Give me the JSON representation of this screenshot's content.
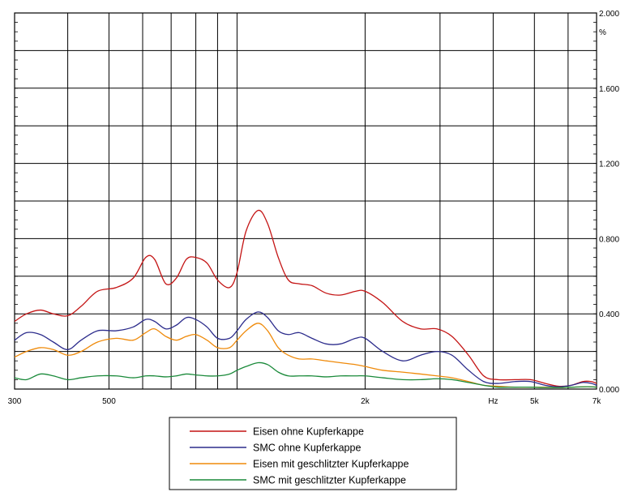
{
  "chart_data": {
    "type": "line",
    "x_scale": "log",
    "x_unit": "Hz",
    "y_unit": "%",
    "xlim": [
      300,
      7000
    ],
    "ylim": [
      0,
      2.0
    ],
    "x_tick_labels": [
      {
        "value": 300,
        "label": "300"
      },
      {
        "value": 500,
        "label": "500"
      },
      {
        "value": 2000,
        "label": "2k"
      },
      {
        "value": 4000,
        "label": "Hz"
      },
      {
        "value": 5000,
        "label": "5k"
      },
      {
        "value": 7000,
        "label": "7k"
      }
    ],
    "y_tick_labels": [
      {
        "value": 0.0,
        "label": "0.000"
      },
      {
        "value": 0.4,
        "label": "0.400"
      },
      {
        "value": 0.8,
        "label": "0.800"
      },
      {
        "value": 1.2,
        "label": "1.200"
      },
      {
        "value": 1.6,
        "label": "1.600"
      },
      {
        "value": 1.9,
        "label": "%"
      },
      {
        "value": 2.0,
        "label": "2.000"
      }
    ],
    "x_grid": [
      300,
      400,
      500,
      600,
      700,
      800,
      900,
      1000,
      2000,
      3000,
      4000,
      5000,
      6000,
      7000
    ],
    "y_grid": [
      0,
      0.2,
      0.4,
      0.6,
      0.8,
      1.0,
      1.2,
      1.4,
      1.6,
      1.8,
      2.0
    ],
    "grid": true,
    "legend_position": "bottom-center",
    "series": [
      {
        "name": "Eisen ohne Kupferkappe",
        "color": "#c41414",
        "points": [
          [
            300,
            0.36
          ],
          [
            320,
            0.4
          ],
          [
            345,
            0.42
          ],
          [
            370,
            0.4
          ],
          [
            400,
            0.39
          ],
          [
            430,
            0.44
          ],
          [
            470,
            0.52
          ],
          [
            520,
            0.54
          ],
          [
            570,
            0.59
          ],
          [
            610,
            0.7
          ],
          [
            640,
            0.69
          ],
          [
            680,
            0.56
          ],
          [
            720,
            0.59
          ],
          [
            760,
            0.69
          ],
          [
            800,
            0.7
          ],
          [
            850,
            0.67
          ],
          [
            900,
            0.58
          ],
          [
            960,
            0.54
          ],
          [
            1000,
            0.62
          ],
          [
            1050,
            0.84
          ],
          [
            1120,
            0.95
          ],
          [
            1180,
            0.88
          ],
          [
            1250,
            0.7
          ],
          [
            1320,
            0.58
          ],
          [
            1400,
            0.56
          ],
          [
            1500,
            0.55
          ],
          [
            1620,
            0.51
          ],
          [
            1750,
            0.5
          ],
          [
            1900,
            0.52
          ],
          [
            2000,
            0.52
          ],
          [
            2200,
            0.46
          ],
          [
            2450,
            0.36
          ],
          [
            2700,
            0.32
          ],
          [
            2950,
            0.32
          ],
          [
            3200,
            0.28
          ],
          [
            3500,
            0.18
          ],
          [
            3800,
            0.07
          ],
          [
            4100,
            0.05
          ],
          [
            4500,
            0.05
          ],
          [
            4900,
            0.05
          ],
          [
            5300,
            0.03
          ],
          [
            5700,
            0.015
          ],
          [
            6100,
            0.02
          ],
          [
            6500,
            0.04
          ],
          [
            6800,
            0.04
          ],
          [
            7000,
            0.03
          ]
        ]
      },
      {
        "name": "SMC ohne Kupferkappe",
        "color": "#2c2c8c",
        "points": [
          [
            300,
            0.26
          ],
          [
            320,
            0.3
          ],
          [
            345,
            0.29
          ],
          [
            370,
            0.25
          ],
          [
            400,
            0.21
          ],
          [
            430,
            0.26
          ],
          [
            470,
            0.31
          ],
          [
            520,
            0.31
          ],
          [
            570,
            0.33
          ],
          [
            610,
            0.37
          ],
          [
            640,
            0.36
          ],
          [
            680,
            0.32
          ],
          [
            720,
            0.34
          ],
          [
            760,
            0.38
          ],
          [
            800,
            0.37
          ],
          [
            850,
            0.33
          ],
          [
            900,
            0.27
          ],
          [
            960,
            0.27
          ],
          [
            1000,
            0.31
          ],
          [
            1050,
            0.37
          ],
          [
            1120,
            0.41
          ],
          [
            1180,
            0.38
          ],
          [
            1250,
            0.31
          ],
          [
            1320,
            0.29
          ],
          [
            1400,
            0.3
          ],
          [
            1500,
            0.27
          ],
          [
            1620,
            0.24
          ],
          [
            1750,
            0.24
          ],
          [
            1900,
            0.27
          ],
          [
            2000,
            0.27
          ],
          [
            2200,
            0.2
          ],
          [
            2450,
            0.15
          ],
          [
            2700,
            0.18
          ],
          [
            2950,
            0.2
          ],
          [
            3200,
            0.18
          ],
          [
            3500,
            0.1
          ],
          [
            3800,
            0.04
          ],
          [
            4100,
            0.03
          ],
          [
            4500,
            0.04
          ],
          [
            4900,
            0.04
          ],
          [
            5300,
            0.02
          ],
          [
            5700,
            0.012
          ],
          [
            6100,
            0.02
          ],
          [
            6500,
            0.035
          ],
          [
            6800,
            0.03
          ],
          [
            7000,
            0.02
          ]
        ]
      },
      {
        "name": "Eisen mit geschlitzter Kupferkappe",
        "color": "#ef8a0a",
        "points": [
          [
            300,
            0.17
          ],
          [
            320,
            0.2
          ],
          [
            345,
            0.22
          ],
          [
            370,
            0.21
          ],
          [
            400,
            0.18
          ],
          [
            430,
            0.2
          ],
          [
            470,
            0.25
          ],
          [
            520,
            0.27
          ],
          [
            570,
            0.26
          ],
          [
            610,
            0.3
          ],
          [
            640,
            0.32
          ],
          [
            680,
            0.28
          ],
          [
            720,
            0.26
          ],
          [
            760,
            0.28
          ],
          [
            800,
            0.29
          ],
          [
            850,
            0.26
          ],
          [
            900,
            0.22
          ],
          [
            960,
            0.22
          ],
          [
            1000,
            0.26
          ],
          [
            1050,
            0.31
          ],
          [
            1120,
            0.35
          ],
          [
            1180,
            0.31
          ],
          [
            1250,
            0.22
          ],
          [
            1320,
            0.18
          ],
          [
            1400,
            0.16
          ],
          [
            1500,
            0.16
          ],
          [
            1620,
            0.15
          ],
          [
            1750,
            0.14
          ],
          [
            1900,
            0.13
          ],
          [
            2000,
            0.12
          ],
          [
            2200,
            0.1
          ],
          [
            2450,
            0.09
          ],
          [
            2700,
            0.08
          ],
          [
            2950,
            0.07
          ],
          [
            3200,
            0.06
          ],
          [
            3500,
            0.04
          ],
          [
            3800,
            0.02
          ],
          [
            4100,
            0.015
          ],
          [
            4500,
            0.01
          ],
          [
            4900,
            0.01
          ],
          [
            5300,
            0.01
          ],
          [
            5700,
            0.008
          ],
          [
            6100,
            0.01
          ],
          [
            6500,
            0.012
          ],
          [
            6800,
            0.012
          ],
          [
            7000,
            0.01
          ]
        ]
      },
      {
        "name": "SMC mit geschlitzter Kupferkappe",
        "color": "#1a8a3a",
        "points": [
          [
            300,
            0.06
          ],
          [
            320,
            0.05
          ],
          [
            345,
            0.08
          ],
          [
            370,
            0.07
          ],
          [
            400,
            0.05
          ],
          [
            430,
            0.06
          ],
          [
            470,
            0.07
          ],
          [
            520,
            0.07
          ],
          [
            570,
            0.06
          ],
          [
            610,
            0.07
          ],
          [
            640,
            0.07
          ],
          [
            680,
            0.065
          ],
          [
            720,
            0.07
          ],
          [
            760,
            0.08
          ],
          [
            800,
            0.075
          ],
          [
            850,
            0.07
          ],
          [
            900,
            0.07
          ],
          [
            960,
            0.08
          ],
          [
            1000,
            0.1
          ],
          [
            1050,
            0.12
          ],
          [
            1120,
            0.14
          ],
          [
            1180,
            0.13
          ],
          [
            1250,
            0.09
          ],
          [
            1320,
            0.07
          ],
          [
            1400,
            0.07
          ],
          [
            1500,
            0.07
          ],
          [
            1620,
            0.065
          ],
          [
            1750,
            0.07
          ],
          [
            1900,
            0.07
          ],
          [
            2000,
            0.07
          ],
          [
            2200,
            0.06
          ],
          [
            2450,
            0.05
          ],
          [
            2700,
            0.05
          ],
          [
            2950,
            0.055
          ],
          [
            3200,
            0.05
          ],
          [
            3500,
            0.035
          ],
          [
            3800,
            0.02
          ],
          [
            4100,
            0.01
          ],
          [
            4500,
            0.01
          ],
          [
            4900,
            0.01
          ],
          [
            5300,
            0.008
          ],
          [
            5700,
            0.008
          ],
          [
            6100,
            0.01
          ],
          [
            6500,
            0.012
          ],
          [
            6800,
            0.012
          ],
          [
            7000,
            0.01
          ]
        ]
      }
    ]
  }
}
